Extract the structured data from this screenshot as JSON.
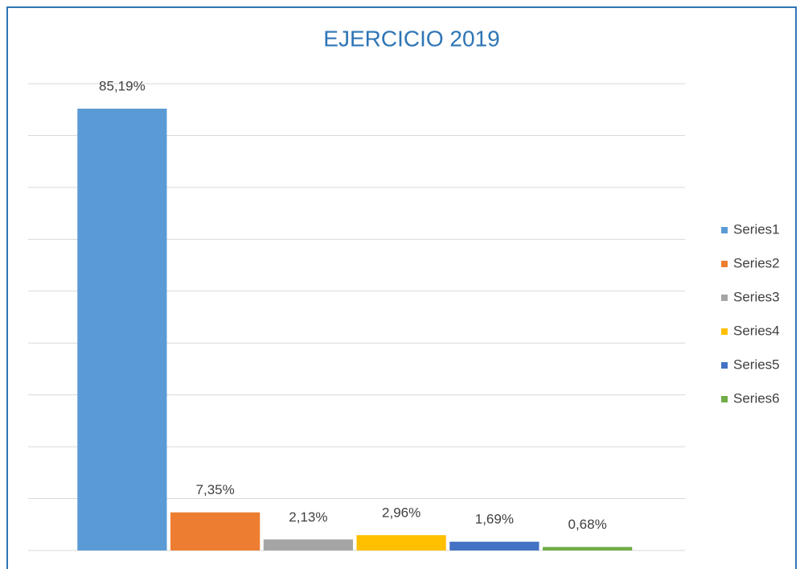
{
  "chart_data": {
    "type": "bar",
    "title": "EJERCICIO 2019",
    "categories": [
      null
    ],
    "series": [
      {
        "name": "Series1",
        "color": "#5b9bd5",
        "values": [
          85.19
        ],
        "value_labels": [
          "85,19%"
        ]
      },
      {
        "name": "Series2",
        "color": "#ed7d31",
        "values": [
          7.35
        ],
        "value_labels": [
          "7,35%"
        ]
      },
      {
        "name": "Series3",
        "color": "#a5a5a5",
        "values": [
          2.13
        ],
        "value_labels": [
          "2,13%"
        ]
      },
      {
        "name": "Series4",
        "color": "#ffc000",
        "values": [
          2.96
        ],
        "value_labels": [
          "2,96%"
        ]
      },
      {
        "name": "Series5",
        "color": "#4472c4",
        "values": [
          1.69
        ],
        "value_labels": [
          "1,69%"
        ]
      },
      {
        "name": "Series6",
        "color": "#70ad47",
        "values": [
          0.68
        ],
        "value_labels": [
          "0,68%"
        ]
      }
    ],
    "ylim": [
      0,
      90
    ],
    "yticks": [
      0,
      10,
      20,
      30,
      40,
      50,
      60,
      70,
      80,
      90
    ],
    "grid": true,
    "legend": "right"
  }
}
